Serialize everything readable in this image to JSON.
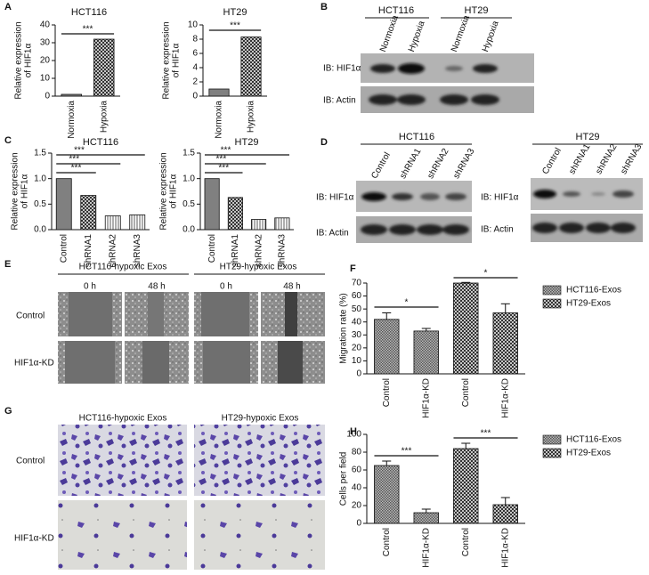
{
  "panels": [
    "A",
    "B",
    "C",
    "D",
    "E",
    "F",
    "G",
    "H"
  ],
  "blot_b": {
    "groups": [
      "HCT116",
      "HT29"
    ],
    "lanes": [
      "Normoxia",
      "Hypoxia",
      "Normoxia",
      "Hypoxia"
    ],
    "rows": [
      "IB: HIF1α",
      "IB: Actin"
    ]
  },
  "blot_d_left": {
    "title": "HCT116",
    "lanes": [
      "Control",
      "shRNA1",
      "shRNA2",
      "shRNA3"
    ],
    "rows": [
      "IB: HIF1α",
      "IB: Actin"
    ]
  },
  "blot_d_right": {
    "title": "HT29",
    "lanes": [
      "Control",
      "shRNA1",
      "shRNA2",
      "shRNA3"
    ],
    "rows": [
      "IB: HIF1α",
      "IB: Actin"
    ]
  },
  "panel_e": {
    "groups": [
      "HCT116-hypoxic Exos",
      "HT29-hypoxic Exos"
    ],
    "times": [
      "0 h",
      "48 h",
      "0 h",
      "48 h"
    ],
    "rows": [
      "Control",
      "HIF1α-KD"
    ]
  },
  "panel_g": {
    "groups": [
      "HCT116-hypoxic Exos",
      "HT29-hypoxic Exos"
    ],
    "rows": [
      "Control",
      "HIF1α-KD"
    ]
  },
  "chart_data": [
    {
      "type": "bar",
      "title": "HCT116",
      "ylabel": [
        "Relative expression",
        "of HIF1α"
      ],
      "categories": [
        "Normoxia",
        "Hypoxia"
      ],
      "values": [
        1,
        32
      ],
      "ylim": [
        0,
        40
      ],
      "yticks": [
        0,
        10,
        20,
        30,
        40
      ],
      "annotations": [
        "***"
      ]
    },
    {
      "type": "bar",
      "title": "HT29",
      "ylabel": [
        "Relative expression",
        "of HIF1α"
      ],
      "categories": [
        "Normoxia",
        "Hypoxia"
      ],
      "values": [
        1,
        8.3
      ],
      "ylim": [
        0,
        10
      ],
      "yticks": [
        0,
        2,
        4,
        6,
        8,
        10
      ],
      "annotations": [
        "***"
      ]
    },
    {
      "type": "bar",
      "title": "HCT116",
      "ylabel": [
        "Relative expression",
        "of HIF1α"
      ],
      "categories": [
        "Control",
        "shRNA1",
        "shRNA2",
        "shRNA3"
      ],
      "values": [
        1.0,
        0.67,
        0.27,
        0.29
      ],
      "ylim": [
        0,
        1.5
      ],
      "yticks": [
        {
          "value": 0,
          "label": "0.0"
        },
        0.5,
        {
          "value": 1,
          "label": "1.0"
        },
        1.5
      ],
      "annotations": [
        "***",
        "***",
        "***"
      ]
    },
    {
      "type": "bar",
      "title": "HT29",
      "ylabel": [
        "Relative expression",
        "of HIF1α"
      ],
      "categories": [
        "Control",
        "shRNA1",
        "shRNA2",
        "shRNA3"
      ],
      "values": [
        1.0,
        0.63,
        0.2,
        0.23
      ],
      "ylim": [
        0,
        1.5
      ],
      "yticks": [
        {
          "value": 0,
          "label": "0.0"
        },
        0.5,
        {
          "value": 1,
          "label": "1.0"
        },
        1.5
      ],
      "annotations": [
        "***",
        "***",
        "***"
      ]
    },
    {
      "type": "bar",
      "ylabel": [
        "Migration rate (%)"
      ],
      "categories": [
        "Control",
        "HIF1α-KD",
        "Control",
        "HIF1α-KD"
      ],
      "series": [
        {
          "name": "HCT116-Exos",
          "values": [
            42,
            33,
            null,
            null
          ],
          "errors": [
            5,
            2,
            null,
            null
          ]
        },
        {
          "name": "HT29-Exos",
          "values": [
            null,
            null,
            70,
            47
          ],
          "errors": [
            null,
            null,
            0.5,
            7
          ]
        }
      ],
      "ylim": [
        0,
        70
      ],
      "yticks": [
        0,
        10,
        20,
        30,
        40,
        50,
        60,
        70
      ],
      "annotations": [
        "*",
        "*"
      ]
    },
    {
      "type": "bar",
      "ylabel": [
        "Cells per field"
      ],
      "categories": [
        "Control",
        "HIF1α-KD",
        "Control",
        "HIF1α-KD"
      ],
      "series": [
        {
          "name": "HCT116-Exos",
          "values": [
            65,
            12,
            null,
            null
          ],
          "errors": [
            5,
            4,
            null,
            null
          ]
        },
        {
          "name": "HT29-Exos",
          "values": [
            null,
            null,
            84,
            21
          ],
          "errors": [
            null,
            null,
            6,
            8
          ]
        }
      ],
      "ylim": [
        0,
        100
      ],
      "yticks": [
        0,
        20,
        40,
        60,
        80,
        100
      ],
      "annotations": [
        "***",
        "***"
      ]
    }
  ]
}
